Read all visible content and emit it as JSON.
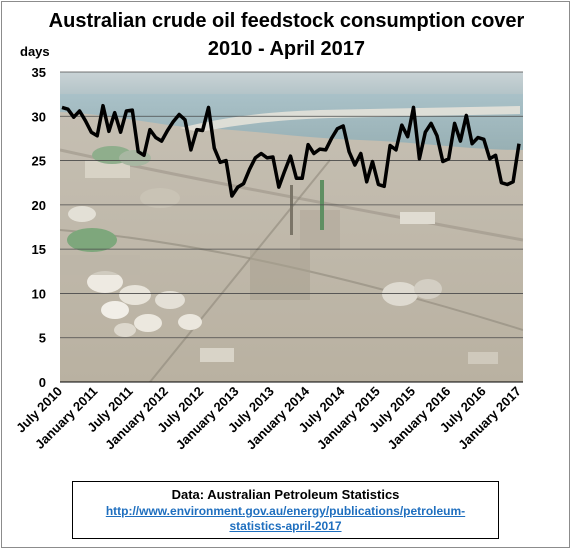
{
  "colors": {
    "line": "#000000",
    "link": "#1f6fbf",
    "grid": "#4a4a4a"
  },
  "chart_data": {
    "type": "line",
    "title_line1": "Australian  crude  oil  feedstock  consumption  cover",
    "title_line2": "2010 - April  2017",
    "ylabel": "days",
    "ylim": [
      0,
      35
    ],
    "yticks": [
      0,
      5,
      10,
      15,
      20,
      25,
      30,
      35
    ],
    "grid": "horizontal",
    "background_image": "refinery-photo",
    "xtick_labels": [
      "July 2010",
      "January 2011",
      "July 2011",
      "January 2012",
      "July 2012",
      "January 2013",
      "July 2013",
      "January 2014",
      "July 2014",
      "January 2015",
      "July 2015",
      "January 2016",
      "July 2016",
      "January 2017"
    ],
    "series": [
      {
        "values": [
          31.0,
          30.8,
          29.9,
          30.6,
          29.5,
          28.2,
          27.8,
          31.2,
          28.3,
          30.4,
          28.2,
          30.6,
          30.7,
          26.0,
          25.6,
          28.5,
          27.6,
          27.2,
          28.4,
          29.4,
          30.2,
          29.6,
          26.2,
          28.5,
          28.4,
          31.0,
          26.4,
          24.8,
          25.0,
          21.0,
          22.0,
          22.4,
          24.0,
          25.3,
          25.8,
          25.3,
          25.4,
          22.0,
          23.8,
          25.5,
          23.0,
          23.0,
          26.8,
          25.8,
          26.3,
          26.2,
          27.5,
          28.6,
          28.9,
          26.0,
          24.5,
          25.8,
          22.6,
          24.9,
          22.3,
          22.1,
          26.7,
          26.2,
          29.0,
          27.7,
          31.0,
          25.2,
          28.2,
          29.2,
          27.8,
          24.9,
          25.2,
          29.2,
          27.2,
          30.1,
          26.9,
          27.6,
          27.4,
          25.2,
          25.6,
          22.5,
          22.3,
          22.6,
          26.9
        ]
      }
    ]
  },
  "source": {
    "label": "Data: Australian Petroleum Statistics",
    "link": "http://www.environment.gov.au/energy/publications/petroleum-statistics-april-2017"
  }
}
